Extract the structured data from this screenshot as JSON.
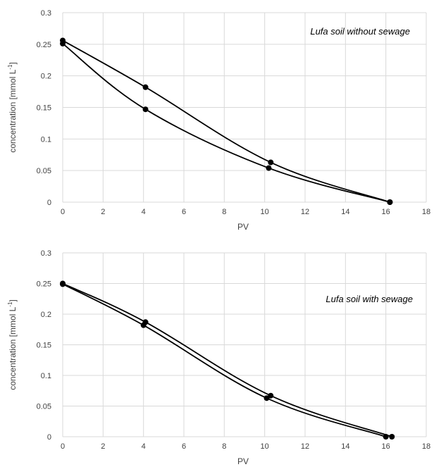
{
  "chart_data": [
    {
      "type": "scatter",
      "annotation": "Lufa soil without sewage",
      "xlabel": "PV",
      "ylabel": "concentration [mmol L",
      "ylabel_sup": "-1",
      "ylabel_close": "]",
      "xlim": [
        0,
        18
      ],
      "ylim": [
        0,
        0.3
      ],
      "xticks": [
        "0",
        "2",
        "4",
        "6",
        "8",
        "10",
        "12",
        "14",
        "16",
        "18"
      ],
      "yticks": [
        "0",
        "0.05",
        "0.1",
        "0.15",
        "0.2",
        "0.25",
        "0.3"
      ],
      "grid": true,
      "series": [
        {
          "x": [
            0,
            4.1,
            10.3,
            16.2
          ],
          "y": [
            0.256,
            0.182,
            0.063,
            0.0
          ]
        },
        {
          "x": [
            0,
            4.1,
            10.2,
            16.2
          ],
          "y": [
            0.251,
            0.147,
            0.054,
            0.0
          ]
        }
      ]
    },
    {
      "type": "scatter",
      "annotation": "Lufa soil with sewage",
      "xlabel": "PV",
      "ylabel": "concentration [mmol L",
      "ylabel_sup": "-1",
      "ylabel_close": "]",
      "xlim": [
        0,
        18
      ],
      "ylim": [
        0,
        0.3
      ],
      "xticks": [
        "0",
        "2",
        "4",
        "6",
        "8",
        "10",
        "12",
        "14",
        "16",
        "18"
      ],
      "yticks": [
        "0",
        "0.05",
        "0.1",
        "0.15",
        "0.2",
        "0.25",
        "0.3"
      ],
      "grid": true,
      "series": [
        {
          "x": [
            0,
            4.1,
            10.3,
            16.3
          ],
          "y": [
            0.25,
            0.187,
            0.067,
            0.0
          ]
        },
        {
          "x": [
            0,
            4.0,
            10.1,
            16.0
          ],
          "y": [
            0.249,
            0.182,
            0.063,
            0.0
          ]
        }
      ]
    }
  ]
}
